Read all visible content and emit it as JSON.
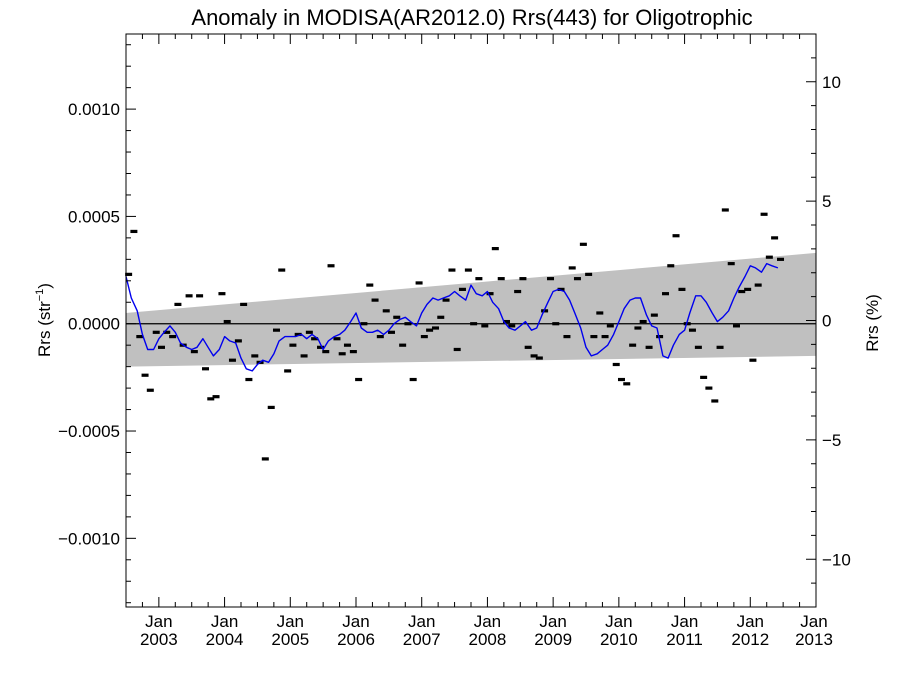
{
  "chart_data": {
    "type": "scatter",
    "title": "Anomaly in MODISA(AR2012.0) Rrs(443) for Oligotrophic",
    "ylabel_left": "Rrs (str",
    "ylabel_left_sup": "−1",
    "ylabel_left_close": ")",
    "ylabel_right": "Rrs (%)",
    "xlim": [
      2002.5,
      2013.0
    ],
    "ylim": [
      -0.00132,
      0.00135
    ],
    "ylim_right": [
      -12,
      12
    ],
    "y_ticks": [
      {
        "v": 0.001,
        "label": "0.0010"
      },
      {
        "v": 0.0005,
        "label": "0.0005"
      },
      {
        "v": 0.0,
        "label": "0.0000"
      },
      {
        "v": -0.0005,
        "label": "−0.0005"
      },
      {
        "v": -0.001,
        "label": "−0.0010"
      }
    ],
    "y_right_ticks": [
      {
        "v": 10,
        "label": "10"
      },
      {
        "v": 5,
        "label": "5"
      },
      {
        "v": 0,
        "label": "0"
      },
      {
        "v": -5,
        "label": "−5"
      },
      {
        "v": -10,
        "label": "−10"
      }
    ],
    "x_ticks": [
      {
        "v": 2003.0,
        "month": "Jan",
        "year": "2003"
      },
      {
        "v": 2004.0,
        "month": "Jan",
        "year": "2004"
      },
      {
        "v": 2005.0,
        "month": "Jan",
        "year": "2005"
      },
      {
        "v": 2006.0,
        "month": "Jan",
        "year": "2006"
      },
      {
        "v": 2007.0,
        "month": "Jan",
        "year": "2007"
      },
      {
        "v": 2008.0,
        "month": "Jan",
        "year": "2008"
      },
      {
        "v": 2009.0,
        "month": "Jan",
        "year": "2009"
      },
      {
        "v": 2010.0,
        "month": "Jan",
        "year": "2010"
      },
      {
        "v": 2011.0,
        "month": "Jan",
        "year": "2011"
      },
      {
        "v": 2012.0,
        "month": "Jan",
        "year": "2012"
      },
      {
        "v": 2013.0,
        "month": "Jan",
        "year": "2013"
      }
    ],
    "grid": false,
    "zero_line": true,
    "trend_band": {
      "color": "#c0c0c0",
      "x": [
        2002.5,
        2013.0
      ],
      "upper": [
        5e-05,
        0.00033
      ],
      "lower": [
        -0.0002,
        -0.00015
      ]
    },
    "series": [
      {
        "kind": "monthly_anomaly_markers",
        "color": "#000000",
        "points": [
          [
            2002.54,
            0.00023
          ],
          [
            2002.62,
            0.00043
          ],
          [
            2002.71,
            -6e-05
          ],
          [
            2002.79,
            -0.00024
          ],
          [
            2002.87,
            -0.00031
          ],
          [
            2002.96,
            -4e-05
          ],
          [
            2003.04,
            -0.00011
          ],
          [
            2003.12,
            -4e-05
          ],
          [
            2003.21,
            -6e-05
          ],
          [
            2003.29,
            9e-05
          ],
          [
            2003.37,
            -0.0001
          ],
          [
            2003.46,
            0.00013
          ],
          [
            2003.54,
            -0.00013
          ],
          [
            2003.62,
            0.00013
          ],
          [
            2003.71,
            -0.00021
          ],
          [
            2003.79,
            -0.00035
          ],
          [
            2003.87,
            -0.00034
          ],
          [
            2003.96,
            0.00014
          ],
          [
            2004.04,
            1e-05
          ],
          [
            2004.12,
            -0.00017
          ],
          [
            2004.21,
            -8e-05
          ],
          [
            2004.29,
            9e-05
          ],
          [
            2004.37,
            -0.00026
          ],
          [
            2004.46,
            -0.00015
          ],
          [
            2004.54,
            -0.00018
          ],
          [
            2004.62,
            -0.00063
          ],
          [
            2004.71,
            -0.00039
          ],
          [
            2004.79,
            -3e-05
          ],
          [
            2004.87,
            0.00025
          ],
          [
            2004.96,
            -0.00022
          ],
          [
            2005.04,
            -0.0001
          ],
          [
            2005.12,
            -5e-05
          ],
          [
            2005.21,
            -0.00015
          ],
          [
            2005.29,
            -4e-05
          ],
          [
            2005.37,
            -7e-05
          ],
          [
            2005.46,
            -0.00011
          ],
          [
            2005.54,
            -0.00013
          ],
          [
            2005.62,
            0.00027
          ],
          [
            2005.71,
            -7e-05
          ],
          [
            2005.79,
            -0.00014
          ],
          [
            2005.87,
            -0.0001
          ],
          [
            2005.96,
            -0.00013
          ],
          [
            2006.04,
            -0.00026
          ],
          [
            2006.12,
            0.0
          ],
          [
            2006.21,
            0.00018
          ],
          [
            2006.29,
            0.00011
          ],
          [
            2006.37,
            -6e-05
          ],
          [
            2006.46,
            6e-05
          ],
          [
            2006.54,
            -4e-05
          ],
          [
            2006.62,
            3e-05
          ],
          [
            2006.71,
            -0.0001
          ],
          [
            2006.79,
            0.0
          ],
          [
            2006.87,
            -0.00026
          ],
          [
            2006.96,
            0.00019
          ],
          [
            2007.04,
            -6e-05
          ],
          [
            2007.12,
            -3e-05
          ],
          [
            2007.21,
            -2e-05
          ],
          [
            2007.29,
            3e-05
          ],
          [
            2007.37,
            0.00011
          ],
          [
            2007.46,
            0.00025
          ],
          [
            2007.54,
            -0.00012
          ],
          [
            2007.62,
            0.00016
          ],
          [
            2007.71,
            0.00025
          ],
          [
            2007.79,
            0.0
          ],
          [
            2007.87,
            0.00021
          ],
          [
            2007.96,
            -1e-05
          ],
          [
            2008.04,
            0.00014
          ],
          [
            2008.12,
            0.00035
          ],
          [
            2008.21,
            0.00021
          ],
          [
            2008.29,
            1e-05
          ],
          [
            2008.37,
            -1e-05
          ],
          [
            2008.46,
            0.00015
          ],
          [
            2008.54,
            0.00021
          ],
          [
            2008.62,
            -0.00011
          ],
          [
            2008.71,
            -0.00015
          ],
          [
            2008.79,
            -0.00016
          ],
          [
            2008.87,
            6e-05
          ],
          [
            2008.96,
            0.00021
          ],
          [
            2009.04,
            0.0
          ],
          [
            2009.12,
            0.00016
          ],
          [
            2009.21,
            -6e-05
          ],
          [
            2009.29,
            0.00026
          ],
          [
            2009.37,
            0.00021
          ],
          [
            2009.46,
            0.00037
          ],
          [
            2009.54,
            0.00023
          ],
          [
            2009.62,
            -6e-05
          ],
          [
            2009.71,
            5e-05
          ],
          [
            2009.79,
            -6e-05
          ],
          [
            2009.87,
            -1e-05
          ],
          [
            2009.96,
            -0.00019
          ],
          [
            2010.04,
            -0.00026
          ],
          [
            2010.12,
            -0.00028
          ],
          [
            2010.21,
            -0.0001
          ],
          [
            2010.29,
            -2e-05
          ],
          [
            2010.37,
            1e-05
          ],
          [
            2010.46,
            -0.00011
          ],
          [
            2010.54,
            4e-05
          ],
          [
            2010.62,
            -6e-05
          ],
          [
            2010.71,
            0.00014
          ],
          [
            2010.79,
            0.00027
          ],
          [
            2010.87,
            0.00041
          ],
          [
            2010.96,
            0.00016
          ],
          [
            2011.04,
            0.0
          ],
          [
            2011.12,
            -3e-05
          ],
          [
            2011.21,
            -0.00011
          ],
          [
            2011.29,
            -0.00025
          ],
          [
            2011.37,
            -0.0003
          ],
          [
            2011.46,
            -0.00036
          ],
          [
            2011.54,
            -0.00011
          ],
          [
            2011.62,
            0.00053
          ],
          [
            2011.71,
            0.00028
          ],
          [
            2011.79,
            -1e-05
          ],
          [
            2011.87,
            0.00015
          ],
          [
            2011.96,
            0.00016
          ],
          [
            2012.04,
            -0.00017
          ],
          [
            2012.12,
            0.00018
          ],
          [
            2012.21,
            0.00051
          ],
          [
            2012.29,
            0.00031
          ],
          [
            2012.37,
            0.0004
          ],
          [
            2012.46,
            0.0003
          ]
        ]
      },
      {
        "kind": "running_mean",
        "color": "#0000ee",
        "points": [
          [
            2002.5,
            0.00022
          ],
          [
            2002.58,
            0.00012
          ],
          [
            2002.67,
            6e-05
          ],
          [
            2002.75,
            -5e-05
          ],
          [
            2002.83,
            -0.00012
          ],
          [
            2002.92,
            -0.00012
          ],
          [
            2003.0,
            -7e-05
          ],
          [
            2003.08,
            -4e-05
          ],
          [
            2003.17,
            -1e-05
          ],
          [
            2003.25,
            -4e-05
          ],
          [
            2003.33,
            -9e-05
          ],
          [
            2003.42,
            -0.00011
          ],
          [
            2003.5,
            -0.00012
          ],
          [
            2003.58,
            -0.00011
          ],
          [
            2003.67,
            -7e-05
          ],
          [
            2003.75,
            -0.00011
          ],
          [
            2003.83,
            -0.00015
          ],
          [
            2003.92,
            -0.00012
          ],
          [
            2004.0,
            -6e-05
          ],
          [
            2004.08,
            -8e-05
          ],
          [
            2004.17,
            -9e-05
          ],
          [
            2004.25,
            -0.00016
          ],
          [
            2004.33,
            -0.00021
          ],
          [
            2004.42,
            -0.00022
          ],
          [
            2004.5,
            -0.00019
          ],
          [
            2004.58,
            -0.00017
          ],
          [
            2004.67,
            -0.00018
          ],
          [
            2004.75,
            -0.00014
          ],
          [
            2004.83,
            -8e-05
          ],
          [
            2004.92,
            -6e-05
          ],
          [
            2005.0,
            -6e-05
          ],
          [
            2005.08,
            -6e-05
          ],
          [
            2005.17,
            -5e-05
          ],
          [
            2005.25,
            -7e-05
          ],
          [
            2005.33,
            -5e-05
          ],
          [
            2005.42,
            -7e-05
          ],
          [
            2005.5,
            -0.00012
          ],
          [
            2005.58,
            -8e-05
          ],
          [
            2005.67,
            -6e-05
          ],
          [
            2005.75,
            -5e-05
          ],
          [
            2005.83,
            -3e-05
          ],
          [
            2005.92,
            1e-05
          ],
          [
            2006.0,
            5e-05
          ],
          [
            2006.08,
            -2e-05
          ],
          [
            2006.17,
            -4e-05
          ],
          [
            2006.25,
            -4e-05
          ],
          [
            2006.33,
            -3e-05
          ],
          [
            2006.42,
            -5e-05
          ],
          [
            2006.5,
            -3e-05
          ],
          [
            2006.58,
            0.0
          ],
          [
            2006.67,
            2e-05
          ],
          [
            2006.75,
            3e-05
          ],
          [
            2006.83,
            1e-05
          ],
          [
            2006.92,
            -1e-05
          ],
          [
            2007.0,
            5e-05
          ],
          [
            2007.08,
            9e-05
          ],
          [
            2007.17,
            0.00012
          ],
          [
            2007.25,
            0.00011
          ],
          [
            2007.33,
            0.00012
          ],
          [
            2007.42,
            0.00013
          ],
          [
            2007.5,
            0.00015
          ],
          [
            2007.58,
            0.00013
          ],
          [
            2007.67,
            0.00011
          ],
          [
            2007.75,
            0.00018
          ],
          [
            2007.83,
            0.00014
          ],
          [
            2007.92,
            0.00013
          ],
          [
            2008.0,
            0.00015
          ],
          [
            2008.08,
            0.0001
          ],
          [
            2008.17,
            7e-05
          ],
          [
            2008.25,
            1e-05
          ],
          [
            2008.33,
            -2e-05
          ],
          [
            2008.42,
            -3e-05
          ],
          [
            2008.5,
            -1e-05
          ],
          [
            2008.58,
            1e-05
          ],
          [
            2008.67,
            -3e-05
          ],
          [
            2008.75,
            -2e-05
          ],
          [
            2008.83,
            4e-05
          ],
          [
            2008.92,
            0.0001
          ],
          [
            2009.0,
            0.00015
          ],
          [
            2009.08,
            0.00016
          ],
          [
            2009.17,
            0.00015
          ],
          [
            2009.25,
            0.00011
          ],
          [
            2009.33,
            5e-05
          ],
          [
            2009.42,
            -2e-05
          ],
          [
            2009.5,
            -0.00011
          ],
          [
            2009.58,
            -0.00015
          ],
          [
            2009.67,
            -0.00014
          ],
          [
            2009.75,
            -0.00012
          ],
          [
            2009.83,
            -0.0001
          ],
          [
            2009.92,
            -5e-05
          ],
          [
            2010.0,
            1e-05
          ],
          [
            2010.08,
            7e-05
          ],
          [
            2010.17,
            0.00011
          ],
          [
            2010.25,
            0.00012
          ],
          [
            2010.33,
            0.00012
          ],
          [
            2010.42,
            4e-05
          ],
          [
            2010.5,
            -1e-05
          ],
          [
            2010.58,
            -2e-05
          ],
          [
            2010.67,
            -0.00015
          ],
          [
            2010.75,
            -0.00016
          ],
          [
            2010.83,
            -0.0001
          ],
          [
            2010.92,
            -5e-05
          ],
          [
            2011.0,
            -3e-05
          ],
          [
            2011.08,
            5e-05
          ],
          [
            2011.17,
            0.00013
          ],
          [
            2011.25,
            0.00013
          ],
          [
            2011.33,
            0.0001
          ],
          [
            2011.42,
            5e-05
          ],
          [
            2011.5,
            1e-05
          ],
          [
            2011.58,
            3e-05
          ],
          [
            2011.67,
            6e-05
          ],
          [
            2011.75,
            0.00012
          ],
          [
            2011.83,
            0.00017
          ],
          [
            2011.92,
            0.00022
          ],
          [
            2012.0,
            0.00027
          ],
          [
            2012.08,
            0.00026
          ],
          [
            2012.17,
            0.00024
          ],
          [
            2012.25,
            0.00028
          ],
          [
            2012.33,
            0.00027
          ],
          [
            2012.42,
            0.00026
          ]
        ]
      }
    ]
  }
}
